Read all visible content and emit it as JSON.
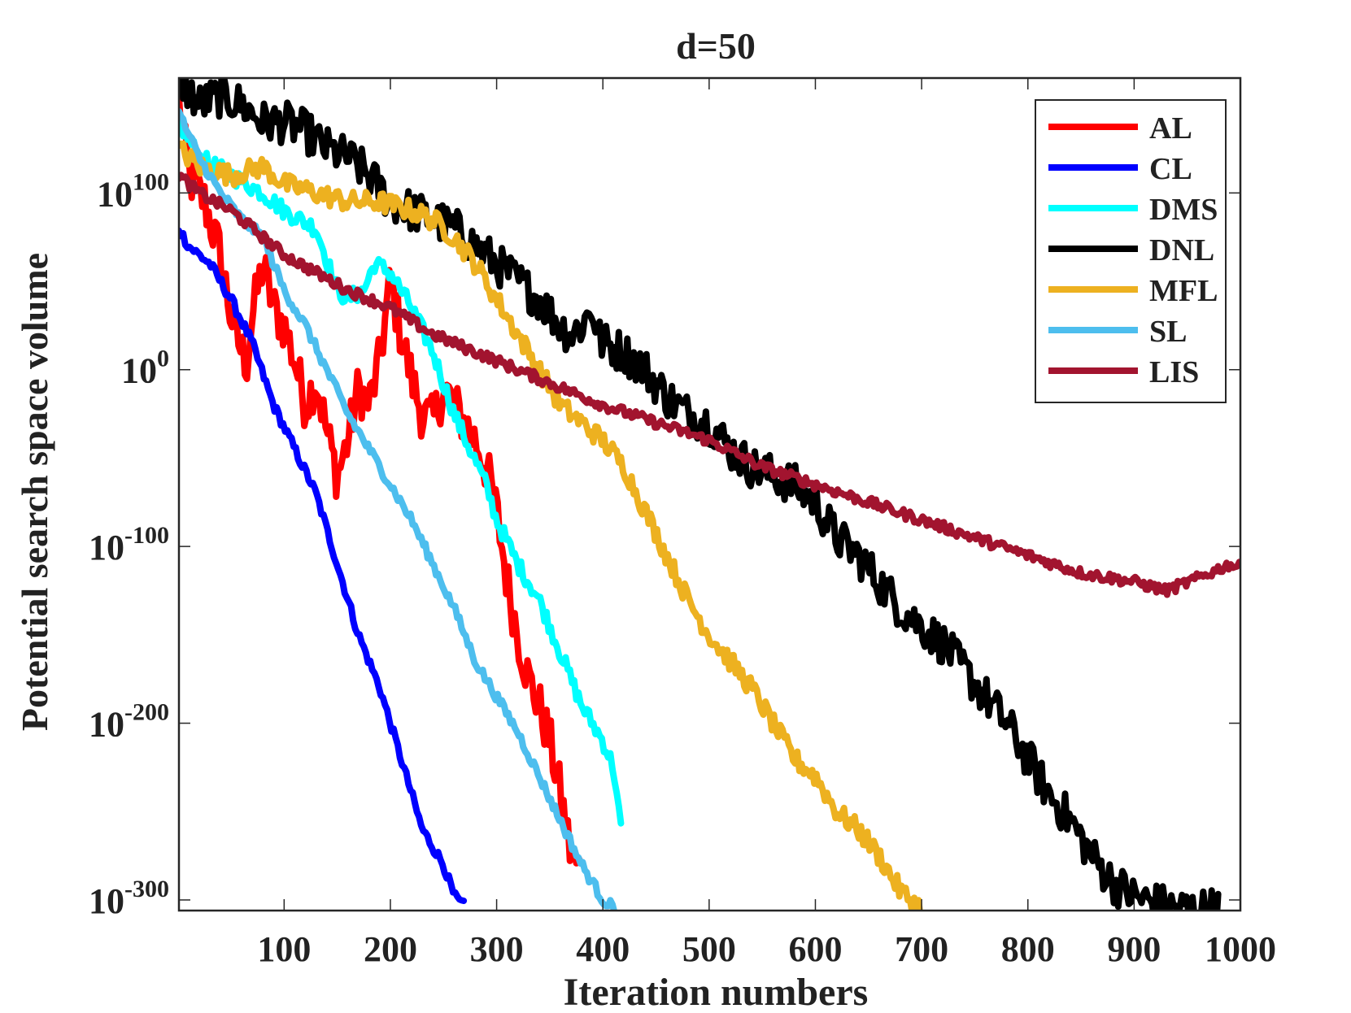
{
  "chart_data": {
    "type": "line",
    "title": "d=50",
    "xlabel": "Iteration numbers",
    "ylabel": "Potential search space volume",
    "xlim": [
      1,
      1000
    ],
    "ylim_log10": [
      -306,
      165
    ],
    "yscale": "log",
    "xticks": [
      100,
      200,
      300,
      400,
      500,
      600,
      700,
      800,
      900,
      1000
    ],
    "xtick_labels": [
      "100",
      "200",
      "300",
      "400",
      "500",
      "600",
      "700",
      "800",
      "900",
      "1000"
    ],
    "yticks_log10": [
      100,
      0,
      -100,
      -200,
      -300
    ],
    "ytick_base": "10",
    "ytick_exponents": [
      "100",
      "0",
      "-100",
      "-200",
      "-300"
    ],
    "grid": false,
    "legend_position": "top-right",
    "series": [
      {
        "name": "AL",
        "color": "#ff0000",
        "noise": 15,
        "points": [
          [
            1,
            150
          ],
          [
            10,
            110
          ],
          [
            25,
            95
          ],
          [
            40,
            65
          ],
          [
            50,
            30
          ],
          [
            60,
            10
          ],
          [
            65,
            5
          ],
          [
            70,
            30
          ],
          [
            80,
            60
          ],
          [
            90,
            35
          ],
          [
            100,
            25
          ],
          [
            110,
            5
          ],
          [
            120,
            -20
          ],
          [
            130,
            -5
          ],
          [
            140,
            -35
          ],
          [
            150,
            -60
          ],
          [
            160,
            -40
          ],
          [
            170,
            -10
          ],
          [
            180,
            -20
          ],
          [
            190,
            5
          ],
          [
            200,
            50
          ],
          [
            210,
            20
          ],
          [
            220,
            -5
          ],
          [
            230,
            -25
          ],
          [
            240,
            -30
          ],
          [
            250,
            -10
          ],
          [
            260,
            -20
          ],
          [
            270,
            -30
          ],
          [
            280,
            -40
          ],
          [
            290,
            -55
          ],
          [
            300,
            -80
          ],
          [
            310,
            -120
          ],
          [
            320,
            -150
          ],
          [
            330,
            -175
          ],
          [
            340,
            -190
          ],
          [
            350,
            -210
          ],
          [
            360,
            -240
          ],
          [
            370,
            -275
          ],
          [
            380,
            -285
          ]
        ]
      },
      {
        "name": "CL",
        "color": "#0000ff",
        "noise": 3,
        "points": [
          [
            1,
            80
          ],
          [
            10,
            70
          ],
          [
            30,
            60
          ],
          [
            50,
            40
          ],
          [
            70,
            15
          ],
          [
            90,
            -20
          ],
          [
            110,
            -45
          ],
          [
            130,
            -70
          ],
          [
            150,
            -110
          ],
          [
            170,
            -150
          ],
          [
            190,
            -180
          ],
          [
            210,
            -220
          ],
          [
            230,
            -260
          ],
          [
            250,
            -280
          ],
          [
            260,
            -298
          ],
          [
            270,
            -304
          ]
        ]
      },
      {
        "name": "DMS",
        "color": "#00ffff",
        "noise": 5,
        "points": [
          [
            1,
            140
          ],
          [
            20,
            120
          ],
          [
            50,
            110
          ],
          [
            80,
            100
          ],
          [
            100,
            90
          ],
          [
            130,
            80
          ],
          [
            150,
            45
          ],
          [
            160,
            40
          ],
          [
            175,
            45
          ],
          [
            185,
            60
          ],
          [
            200,
            55
          ],
          [
            220,
            35
          ],
          [
            240,
            10
          ],
          [
            260,
            -25
          ],
          [
            275,
            -45
          ],
          [
            290,
            -65
          ],
          [
            300,
            -85
          ],
          [
            320,
            -110
          ],
          [
            340,
            -130
          ],
          [
            360,
            -160
          ],
          [
            380,
            -190
          ],
          [
            400,
            -210
          ],
          [
            410,
            -225
          ],
          [
            418,
            -265
          ]
        ]
      },
      {
        "name": "DNL",
        "color": "#000000",
        "noise": 12,
        "points": [
          [
            1,
            165
          ],
          [
            20,
            150
          ],
          [
            40,
            155
          ],
          [
            60,
            150
          ],
          [
            80,
            140
          ],
          [
            100,
            140
          ],
          [
            120,
            135
          ],
          [
            140,
            125
          ],
          [
            160,
            120
          ],
          [
            180,
            110
          ],
          [
            200,
            95
          ],
          [
            220,
            90
          ],
          [
            240,
            85
          ],
          [
            260,
            80
          ],
          [
            280,
            70
          ],
          [
            300,
            60
          ],
          [
            320,
            50
          ],
          [
            340,
            40
          ],
          [
            360,
            25
          ],
          [
            370,
            20
          ],
          [
            380,
            25
          ],
          [
            390,
            35
          ],
          [
            395,
            20
          ],
          [
            400,
            15
          ],
          [
            420,
            10
          ],
          [
            440,
            0
          ],
          [
            460,
            -15
          ],
          [
            480,
            -25
          ],
          [
            500,
            -30
          ],
          [
            520,
            -45
          ],
          [
            540,
            -55
          ],
          [
            560,
            -60
          ],
          [
            580,
            -65
          ],
          [
            600,
            -75
          ],
          [
            620,
            -95
          ],
          [
            640,
            -105
          ],
          [
            660,
            -120
          ],
          [
            680,
            -135
          ],
          [
            700,
            -145
          ],
          [
            720,
            -155
          ],
          [
            740,
            -170
          ],
          [
            760,
            -185
          ],
          [
            780,
            -200
          ],
          [
            800,
            -220
          ],
          [
            820,
            -240
          ],
          [
            840,
            -255
          ],
          [
            860,
            -275
          ],
          [
            880,
            -290
          ],
          [
            900,
            -298
          ],
          [
            920,
            -302
          ],
          [
            940,
            -305
          ],
          [
            960,
            -305
          ],
          [
            980,
            -305
          ]
        ]
      },
      {
        "name": "MFL",
        "color": "#edb120",
        "noise": 6,
        "points": [
          [
            1,
            125
          ],
          [
            20,
            115
          ],
          [
            50,
            110
          ],
          [
            80,
            115
          ],
          [
            100,
            105
          ],
          [
            130,
            100
          ],
          [
            160,
            95
          ],
          [
            190,
            95
          ],
          [
            220,
            90
          ],
          [
            240,
            85
          ],
          [
            260,
            75
          ],
          [
            280,
            60
          ],
          [
            300,
            40
          ],
          [
            320,
            20
          ],
          [
            340,
            0
          ],
          [
            360,
            -20
          ],
          [
            380,
            -30
          ],
          [
            400,
            -40
          ],
          [
            420,
            -55
          ],
          [
            440,
            -80
          ],
          [
            460,
            -105
          ],
          [
            480,
            -130
          ],
          [
            500,
            -150
          ],
          [
            520,
            -165
          ],
          [
            540,
            -180
          ],
          [
            560,
            -200
          ],
          [
            580,
            -220
          ],
          [
            600,
            -230
          ],
          [
            620,
            -250
          ],
          [
            640,
            -260
          ],
          [
            660,
            -275
          ],
          [
            680,
            -295
          ],
          [
            700,
            -305
          ]
        ]
      },
      {
        "name": "SL",
        "color": "#4dbeee",
        "noise": 3,
        "points": [
          [
            1,
            145
          ],
          [
            20,
            120
          ],
          [
            40,
            100
          ],
          [
            60,
            85
          ],
          [
            80,
            75
          ],
          [
            100,
            45
          ],
          [
            120,
            25
          ],
          [
            140,
            0
          ],
          [
            160,
            -25
          ],
          [
            180,
            -45
          ],
          [
            200,
            -65
          ],
          [
            220,
            -85
          ],
          [
            240,
            -110
          ],
          [
            260,
            -135
          ],
          [
            280,
            -165
          ],
          [
            300,
            -185
          ],
          [
            320,
            -205
          ],
          [
            340,
            -230
          ],
          [
            360,
            -255
          ],
          [
            380,
            -280
          ],
          [
            400,
            -300
          ],
          [
            412,
            -305
          ]
        ]
      },
      {
        "name": "LIS",
        "color": "#a2142f",
        "noise": 3,
        "points": [
          [
            1,
            110
          ],
          [
            20,
            100
          ],
          [
            50,
            90
          ],
          [
            80,
            75
          ],
          [
            100,
            65
          ],
          [
            130,
            55
          ],
          [
            160,
            45
          ],
          [
            200,
            35
          ],
          [
            240,
            20
          ],
          [
            280,
            10
          ],
          [
            320,
            0
          ],
          [
            360,
            -10
          ],
          [
            400,
            -20
          ],
          [
            450,
            -30
          ],
          [
            500,
            -40
          ],
          [
            550,
            -55
          ],
          [
            600,
            -65
          ],
          [
            650,
            -75
          ],
          [
            700,
            -85
          ],
          [
            750,
            -95
          ],
          [
            800,
            -105
          ],
          [
            850,
            -115
          ],
          [
            900,
            -120
          ],
          [
            930,
            -125
          ],
          [
            960,
            -118
          ],
          [
            990,
            -110
          ],
          [
            1000,
            -112
          ]
        ]
      }
    ]
  }
}
